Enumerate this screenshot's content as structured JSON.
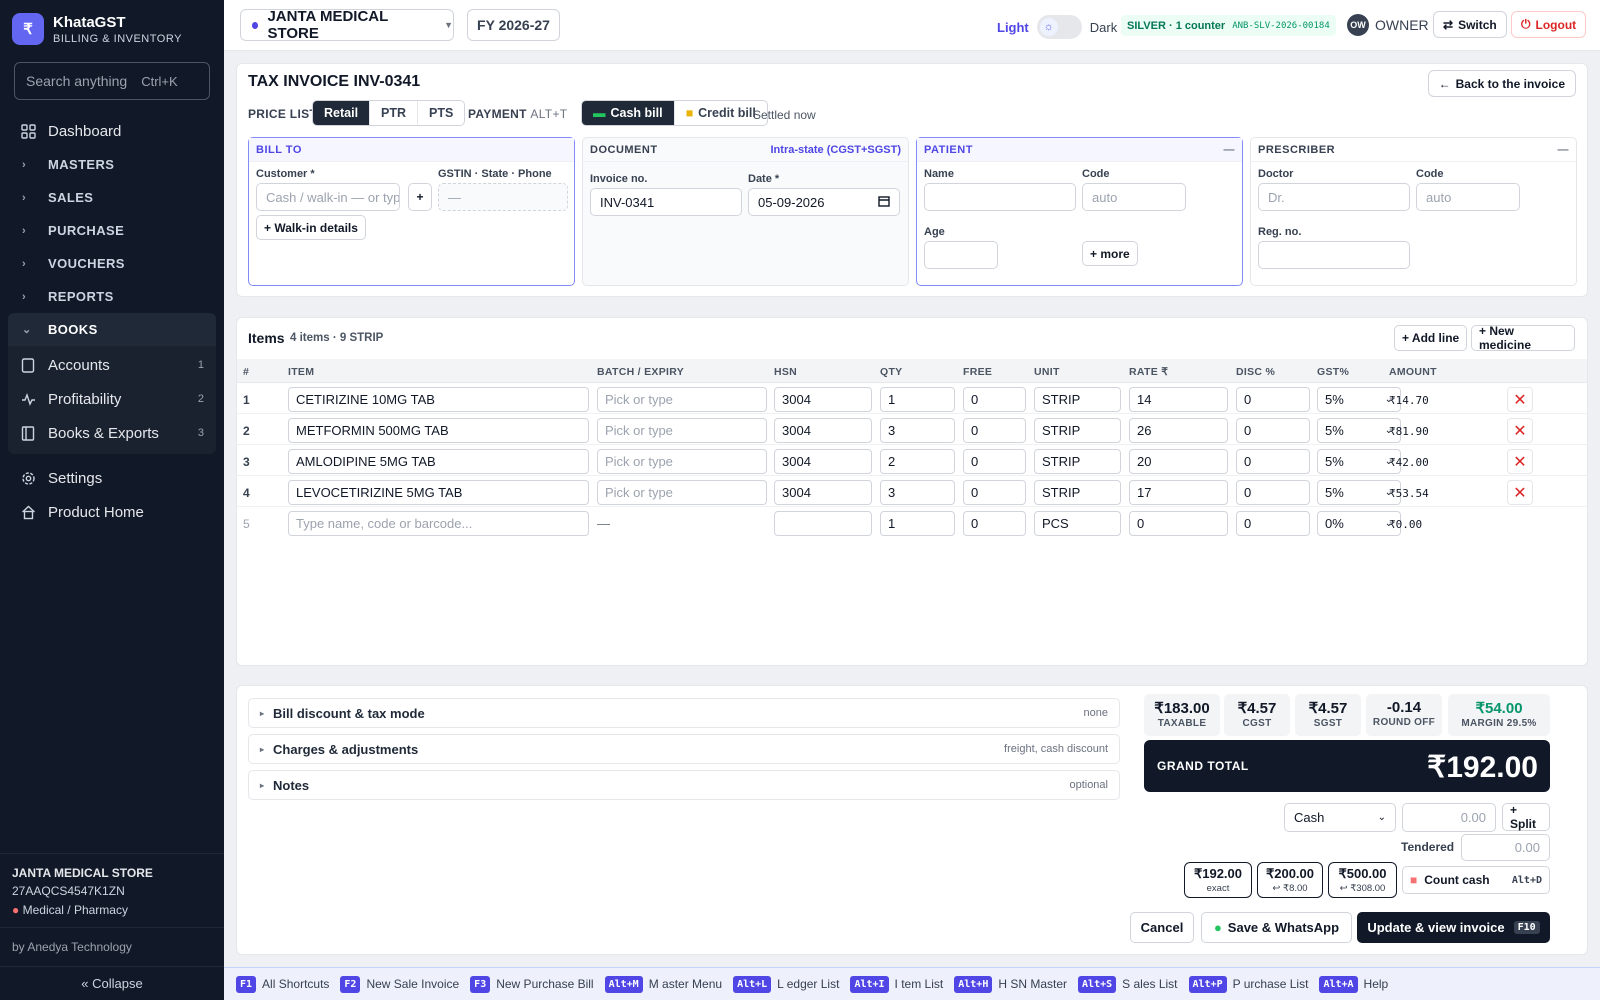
{
  "app": {
    "name": "KhataGST",
    "tagline": "BILLING & INVENTORY",
    "logo_glyph": "₹"
  },
  "search": {
    "placeholder": "Search anything",
    "shortcut": "Ctrl+K"
  },
  "sidebar": {
    "dashboard": "Dashboard",
    "groups": [
      "MASTERS",
      "SALES",
      "PURCHASE",
      "VOUCHERS",
      "REPORTS"
    ],
    "books": {
      "label": "BOOKS",
      "items": [
        {
          "label": "Accounts",
          "count": "1",
          "icon": "book-icon"
        },
        {
          "label": "Profitability",
          "count": "2",
          "icon": "pulse-icon"
        },
        {
          "label": "Books & Exports",
          "count": "3",
          "icon": "ledger-icon"
        }
      ]
    },
    "settings": "Settings",
    "product_home": "Product Home",
    "store": {
      "name": "JANTA MEDICAL STORE",
      "gstin": "27AAQCS4547K1ZN",
      "type": "Medical / Pharmacy"
    },
    "by": "by Anedya Technology",
    "collapse": "« Collapse"
  },
  "topbar": {
    "store": "JANTA MEDICAL STORE",
    "fy": "FY 2026-27",
    "theme_light": "Light",
    "theme_dark": "Dark",
    "plan": "SILVER · 1 counter",
    "plan_code": "ANB-SLV-2026-00184",
    "user_initials": "OW",
    "user_role": "OWNER",
    "switch": "Switch",
    "logout": "Logout"
  },
  "invoice": {
    "title": "TAX INVOICE INV-0341",
    "back": "Back to the invoice",
    "price_list_label": "PRICE LIST",
    "price_lists": [
      "Retail",
      "PTR",
      "PTS"
    ],
    "price_list_active": "Retail",
    "payment_label": "PAYMENT",
    "payment_shortcut": "ALT+T",
    "payment_modes": [
      "Cash bill",
      "Credit bill"
    ],
    "payment_active": "Cash bill",
    "settled": "Settled now"
  },
  "bill_to": {
    "title": "BILL TO",
    "customer_label": "Customer *",
    "customer_placeholder": "Cash / walk-in — or type",
    "add": "+",
    "gstin_label": "GSTIN · State · Phone",
    "gstin_value": "—",
    "walkin": "+ Walk-in details"
  },
  "document": {
    "title": "DOCUMENT",
    "tax_mode": "Intra-state (CGST+SGST)",
    "invoice_no_label": "Invoice no.",
    "invoice_no": "INV-0341",
    "date_label": "Date *",
    "date": "05-09-2026"
  },
  "patient": {
    "title": "PATIENT",
    "name_label": "Name",
    "code_label": "Code",
    "code_placeholder": "auto",
    "age_label": "Age",
    "more": "+ more"
  },
  "prescriber": {
    "title": "PRESCRIBER",
    "doctor_label": "Doctor",
    "doctor_placeholder": "Dr.",
    "code_label": "Code",
    "code_placeholder": "auto",
    "reg_label": "Reg. no."
  },
  "items": {
    "title": "Items",
    "summary": "4 items · 9 STRIP",
    "add_line": "+ Add line",
    "new_medicine": "+ New medicine",
    "columns": [
      "#",
      "ITEM",
      "BATCH / EXPIRY",
      "HSN",
      "QTY",
      "FREE",
      "UNIT",
      "RATE ₹",
      "DISC %",
      "GST%",
      "AMOUNT"
    ],
    "rows": [
      {
        "n": "1",
        "item": "CETIRIZINE 10MG TAB",
        "batch": "Pick or type",
        "hsn": "3004",
        "qty": "1",
        "free": "0",
        "unit": "STRIP",
        "rate": "14",
        "disc": "0",
        "gst": "5%",
        "amount": "₹14.70"
      },
      {
        "n": "2",
        "item": "METFORMIN 500MG TAB",
        "batch": "Pick or type",
        "hsn": "3004",
        "qty": "3",
        "free": "0",
        "unit": "STRIP",
        "rate": "26",
        "disc": "0",
        "gst": "5%",
        "amount": "₹81.90"
      },
      {
        "n": "3",
        "item": "AMLODIPINE 5MG TAB",
        "batch": "Pick or type",
        "hsn": "3004",
        "qty": "2",
        "free": "0",
        "unit": "STRIP",
        "rate": "20",
        "disc": "0",
        "gst": "5%",
        "amount": "₹42.00"
      },
      {
        "n": "4",
        "item": "LEVOCETIRIZINE 5MG TAB",
        "batch": "Pick or type",
        "hsn": "3004",
        "qty": "3",
        "free": "0",
        "unit": "STRIP",
        "rate": "17",
        "disc": "0",
        "gst": "5%",
        "amount": "₹53.54"
      }
    ],
    "new_row": {
      "n": "5",
      "placeholder": "Type name, code or barcode...",
      "batch": "—",
      "hsn": "",
      "qty": "1",
      "free": "0",
      "unit": "PCS",
      "rate": "0",
      "disc": "0",
      "gst": "0%",
      "amount": "₹0.00"
    }
  },
  "extras": [
    {
      "label": "Bill discount & tax mode",
      "hint": "none"
    },
    {
      "label": "Charges & adjustments",
      "hint": "freight, cash discount"
    },
    {
      "label": "Notes",
      "hint": "optional"
    }
  ],
  "totals": {
    "taxable": "₹183.00",
    "taxable_label": "TAXABLE",
    "cgst": "₹4.57",
    "cgst_label": "CGST",
    "sgst": "₹4.57",
    "sgst_label": "SGST",
    "round_off": "-0.14",
    "round_off_label": "ROUND OFF",
    "margin": "₹54.00",
    "margin_label": "MARGIN 29.5%",
    "grand_label": "GRAND TOTAL",
    "grand_total": "₹192.00"
  },
  "payment": {
    "mode": "Cash",
    "amount_placeholder": "0.00",
    "split": "+ Split",
    "tendered_label": "Tendered",
    "tendered_placeholder": "0.00",
    "quick": [
      {
        "value": "₹192.00",
        "sub": "exact"
      },
      {
        "value": "₹200.00",
        "sub": "↩ ₹8.00"
      },
      {
        "value": "₹500.00",
        "sub": "↩ ₹308.00"
      }
    ],
    "count_cash": "Count cash",
    "count_cash_key": "Alt+D"
  },
  "actions": {
    "cancel": "Cancel",
    "whatsapp": "Save & WhatsApp",
    "update": "Update & view invoice",
    "update_key": "F10"
  },
  "shortcuts": [
    {
      "key": "F1",
      "label": "All Shortcuts"
    },
    {
      "key": "F2",
      "label": "New Sale Invoice"
    },
    {
      "key": "F3",
      "label": "New Purchase Bill"
    },
    {
      "key": "Alt+M",
      "label": "M aster Menu"
    },
    {
      "key": "Alt+L",
      "label": "L edger List"
    },
    {
      "key": "Alt+I",
      "label": "I tem List"
    },
    {
      "key": "Alt+H",
      "label": "H SN Master"
    },
    {
      "key": "Alt+S",
      "label": "S ales List"
    },
    {
      "key": "Alt+P",
      "label": "P urchase List"
    },
    {
      "key": "Alt+A",
      "label": "Help"
    }
  ],
  "colors": {
    "accent": "#4f46e5",
    "sidebar": "#111827",
    "success": "#059669",
    "danger": "#dc2626"
  }
}
